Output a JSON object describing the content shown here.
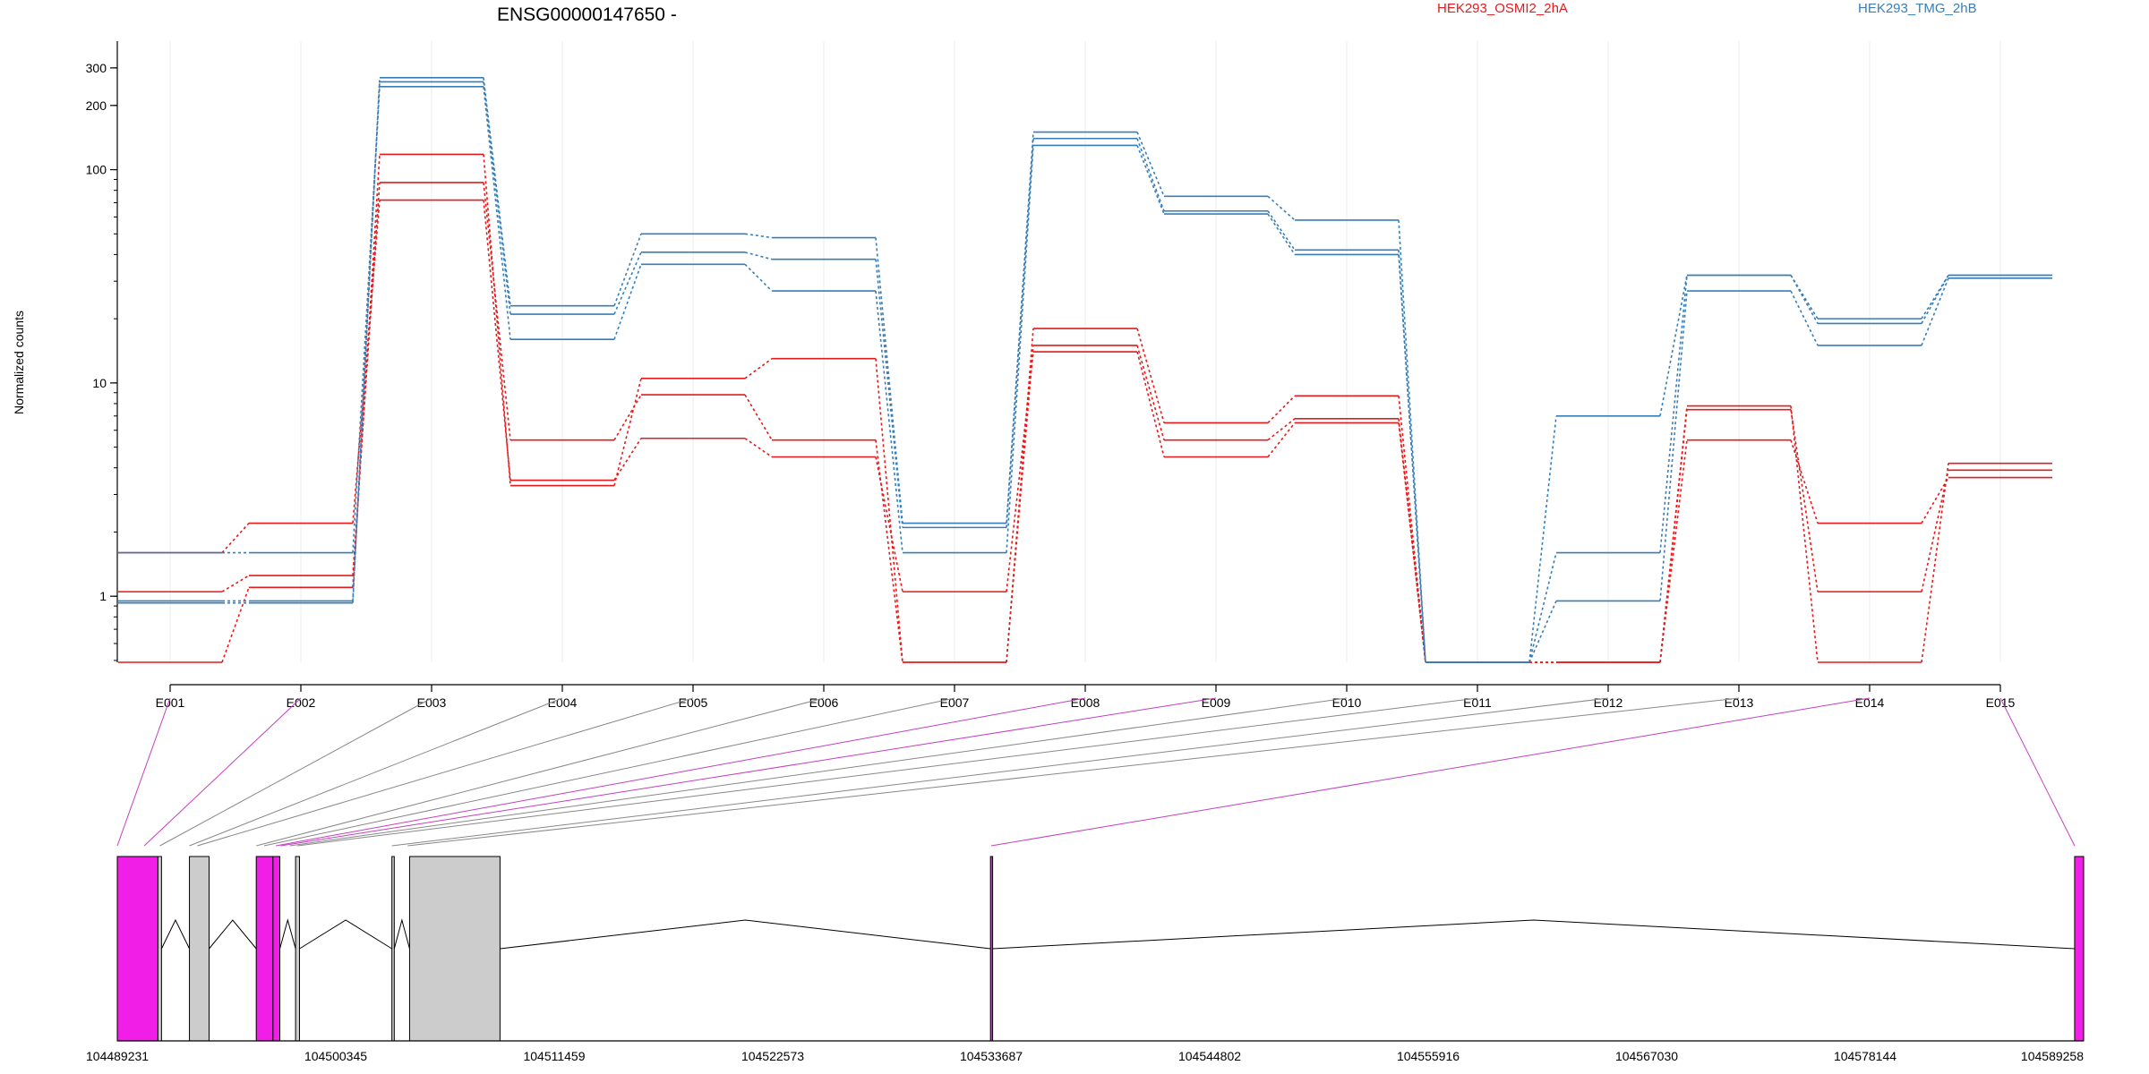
{
  "chart_data": {
    "type": "line",
    "title": "ENSG00000147650 -",
    "ylabel": "Normalized counts",
    "xlabel": "",
    "yscale": "log",
    "ylim": [
      0.49,
      330
    ],
    "yticks": [
      1,
      10,
      100,
      200,
      300
    ],
    "ytick_labels": [
      "1",
      "10",
      "100",
      "200",
      "300"
    ],
    "grid": "vertical lines at each exon",
    "legend_position": "top",
    "colors": {
      "OSMI2": "#e41a1c",
      "TMG": "#377eb8",
      "highlight": "#f01ee6",
      "exon_gray": "#cccccc"
    },
    "categories": [
      "E001",
      "E002",
      "E003",
      "E004",
      "E005",
      "E006",
      "E007",
      "E008",
      "E009",
      "E010",
      "E011",
      "E012",
      "E013",
      "E014",
      "E015"
    ],
    "legend": [
      {
        "label": "HEK293_OSMI2_2hA",
        "color": "#e41a1c"
      },
      {
        "label": "HEK293_TMG_2hB",
        "color": "#377eb8"
      }
    ],
    "series": [
      {
        "group": "OSMI2",
        "color": "#e41a1c",
        "values": [
          1.6,
          2.2,
          72,
          3.5,
          5.5,
          4.5,
          1.05,
          14,
          4.5,
          6.5,
          0.49,
          0.49,
          5.4,
          2.2,
          3.6
        ]
      },
      {
        "group": "OSMI2",
        "color": "#e41a1c",
        "values": [
          1.05,
          1.25,
          87,
          5.4,
          8.8,
          5.4,
          0.49,
          15,
          5.4,
          6.8,
          0.49,
          0.49,
          7.5,
          1.05,
          3.9
        ]
      },
      {
        "group": "OSMI2",
        "color": "#e41a1c",
        "values": [
          0.49,
          1.1,
          118,
          3.3,
          10.5,
          13,
          0.49,
          18,
          6.5,
          8.7,
          0.49,
          0.49,
          7.8,
          0.49,
          4.2
        ]
      },
      {
        "group": "TMG",
        "color": "#377eb8",
        "values": [
          1.6,
          1.6,
          245,
          16,
          36,
          27,
          1.6,
          130,
          62,
          40,
          0.49,
          0.95,
          27,
          15,
          31
        ]
      },
      {
        "group": "TMG",
        "color": "#377eb8",
        "values": [
          0.95,
          0.95,
          258,
          21,
          41,
          38,
          2.1,
          140,
          64,
          42,
          0.49,
          1.6,
          32,
          19,
          32
        ]
      },
      {
        "group": "TMG",
        "color": "#377eb8",
        "values": [
          0.93,
          0.93,
          270,
          23,
          50,
          48,
          2.2,
          150,
          75,
          58,
          0.49,
          7,
          32,
          20,
          32
        ]
      }
    ],
    "gene_model": {
      "coordinate_range": [
        104489231,
        104589258
      ],
      "coordinate_ticks": [
        104489231,
        104500345,
        104511459,
        104522573,
        104533687,
        104544802,
        104555916,
        104567030,
        104578144,
        104589258
      ],
      "coordinate_tick_labels": [
        "104489231",
        "104500345",
        "104511459",
        "104522573",
        "104533687",
        "104544802",
        "104555916",
        "104567030",
        "104578144",
        "104589258"
      ],
      "exons": [
        {
          "id": "E001",
          "start": 104489231,
          "end": 104491300,
          "highlight": true
        },
        {
          "id": "E002",
          "start": 104491300,
          "end": 104491480,
          "highlight": false
        },
        {
          "id": "E003",
          "start": 104492900,
          "end": 104493900,
          "highlight": false
        },
        {
          "id": "E004",
          "start": 104496300,
          "end": 104497150,
          "highlight": true
        },
        {
          "id": "E005",
          "start": 104497150,
          "end": 104497500,
          "highlight": true
        },
        {
          "id": "E006",
          "start": 104498300,
          "end": 104498500,
          "highlight": false
        },
        {
          "id": "E007",
          "start": 104503200,
          "end": 104503320,
          "highlight": false
        },
        {
          "id": "E008",
          "start": 104504100,
          "end": 104508700,
          "highlight": false
        },
        {
          "id": "E009",
          "start": 104533650,
          "end": 104533760,
          "highlight": true
        },
        {
          "id": "E010",
          "start": 104588800,
          "end": 104589258,
          "highlight": true
        }
      ]
    }
  }
}
